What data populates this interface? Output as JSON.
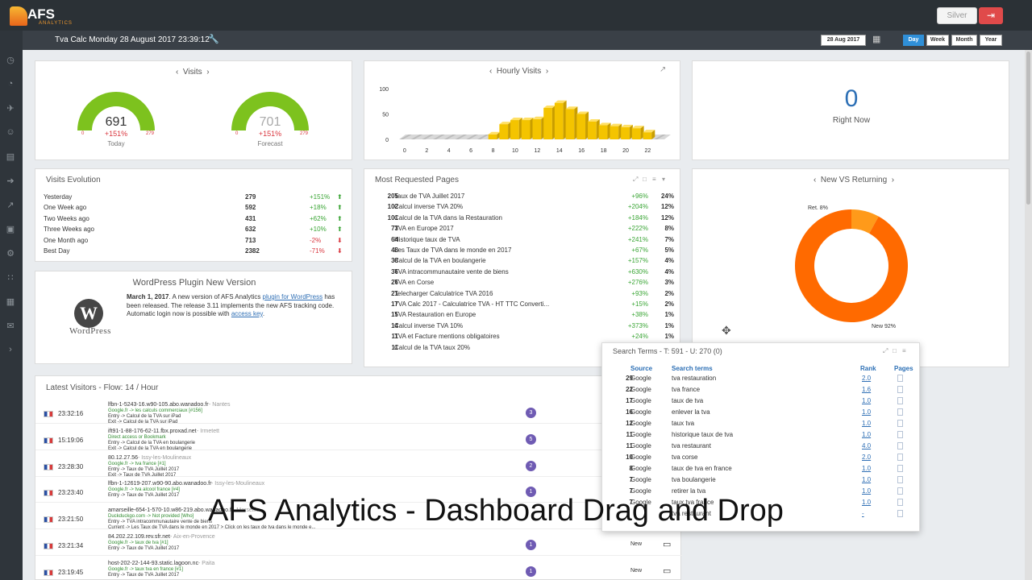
{
  "app": {
    "logo_text": "AFS",
    "logo_sub": "ANALYTICS",
    "plan_label": "Silver",
    "subtitle": "Tva Calc Monday 28 August 2017 23:39:12",
    "date_value": "28 Aug 2017",
    "periods": [
      "Day",
      "Week",
      "Month",
      "Year"
    ],
    "active_period": "Day"
  },
  "visits": {
    "title": "Visits",
    "today": {
      "value": "691",
      "delta": "+151%",
      "min": "0",
      "max": "279",
      "label": "Today",
      "level": 1.0
    },
    "forecast": {
      "value": "701",
      "delta": "+151%",
      "min": "0",
      "max": "279",
      "label": "Forecast",
      "level": 1.0
    }
  },
  "hourly": {
    "title": "Hourly Visits",
    "chart_data": {
      "type": "bar",
      "categories": [
        "0",
        "1",
        "2",
        "3",
        "4",
        "5",
        "6",
        "7",
        "8",
        "9",
        "10",
        "11",
        "12",
        "13",
        "14",
        "15",
        "16",
        "17",
        "18",
        "19",
        "20",
        "21",
        "22",
        "23"
      ],
      "values": [
        0,
        0,
        0,
        0,
        0,
        0,
        0,
        0,
        10,
        30,
        38,
        38,
        40,
        62,
        72,
        60,
        50,
        35,
        28,
        26,
        24,
        22,
        14,
        0
      ],
      "xticks": [
        "0",
        "2",
        "4",
        "6",
        "8",
        "10",
        "12",
        "14",
        "16",
        "18",
        "20",
        "22"
      ],
      "yticks": [
        "100",
        "50",
        "0"
      ],
      "ylim": [
        0,
        100
      ]
    }
  },
  "right_now": {
    "value": "0",
    "label": "Right Now"
  },
  "visits_evolution": {
    "title": "Visits Evolution",
    "rows": [
      {
        "label": "Yesterday",
        "value": "279",
        "delta": "+151%",
        "up": true
      },
      {
        "label": "One Week ago",
        "value": "592",
        "delta": "+18%",
        "up": true
      },
      {
        "label": "Two Weeks ago",
        "value": "431",
        "delta": "+62%",
        "up": true
      },
      {
        "label": "Three Weeks ago",
        "value": "632",
        "delta": "+10%",
        "up": true
      },
      {
        "label": "One Month ago",
        "value": "713",
        "delta": "-2%",
        "up": false
      },
      {
        "label": "Best Day",
        "value": "2382",
        "delta": "-71%",
        "up": false
      }
    ]
  },
  "most_requested": {
    "title": "Most Requested Pages",
    "rows": [
      {
        "n": "205",
        "page": "Taux de TVA Juillet 2017",
        "delta": "+96%",
        "pct": "24%"
      },
      {
        "n": "102",
        "page": "Calcul inverse TVA 20%",
        "delta": "+204%",
        "pct": "12%"
      },
      {
        "n": "101",
        "page": "Calcul de la TVA dans la Restauration",
        "delta": "+184%",
        "pct": "12%"
      },
      {
        "n": "73",
        "page": "TVA en Europe 2017",
        "delta": "+222%",
        "pct": "8%"
      },
      {
        "n": "64",
        "page": "Historique taux de TVA",
        "delta": "+241%",
        "pct": "7%"
      },
      {
        "n": "48",
        "page": "Les Taux de TVA dans le monde en 2017",
        "delta": "+67%",
        "pct": "5%"
      },
      {
        "n": "38",
        "page": "Calcul de la TVA en boulangerie",
        "delta": "+157%",
        "pct": "4%"
      },
      {
        "n": "36",
        "page": "TVA intracommunautaire vente de biens",
        "delta": "+630%",
        "pct": "4%"
      },
      {
        "n": "26",
        "page": "TVA en Corse",
        "delta": "+276%",
        "pct": "3%"
      },
      {
        "n": "21",
        "page": "Telecharger Calculatrice TVA 2016",
        "delta": "+93%",
        "pct": "2%"
      },
      {
        "n": "17",
        "page": "TVA Calc 2017 - Calculatrice TVA - HT TTC Converti...",
        "delta": "+15%",
        "pct": "2%"
      },
      {
        "n": "15",
        "page": "TVA Restauration en Europe",
        "delta": "+38%",
        "pct": "1%"
      },
      {
        "n": "14",
        "page": "Calcul inverse TVA 10%",
        "delta": "+373%",
        "pct": "1%"
      },
      {
        "n": "11",
        "page": "TVA et Facture mentions obligatoires",
        "delta": "+24%",
        "pct": "1%"
      },
      {
        "n": "11",
        "page": "Calcul de la TVA taux 20%",
        "delta": "",
        "pct": ""
      }
    ]
  },
  "new_vs_returning": {
    "title": "New VS Returning",
    "chart_data": {
      "type": "pie",
      "categories": [
        "Ret.",
        "New"
      ],
      "values": [
        8,
        92
      ],
      "labels": [
        "Ret. 8%",
        "New 92%"
      ]
    }
  },
  "wordpress": {
    "title": "WordPress Plugin New Version",
    "logo_text": "WordPress",
    "date": "March 1, 2017",
    "text1": ". A new version of AFS Analytics ",
    "link1": "plugin for WordPress",
    "text2": " has been released. The release 3.11 implements the new AFS tracking code. Automatic login now is possible with ",
    "link2": "access key",
    "text3": "."
  },
  "search_terms": {
    "title": "Search Terms - T: 591 - U: 270 (0)",
    "headers": {
      "source": "Source",
      "terms": "Search terms",
      "rank": "Rank",
      "pages": "Pages"
    },
    "rows": [
      {
        "n": "29",
        "source": "Google",
        "term": "tva restauration",
        "rank": "2.0"
      },
      {
        "n": "22",
        "source": "Google",
        "term": "tva france",
        "rank": "1.6"
      },
      {
        "n": "17",
        "source": "Google",
        "term": "taux de tva",
        "rank": "1.0"
      },
      {
        "n": "16",
        "source": "Google",
        "term": "enlever la tva",
        "rank": "1.0"
      },
      {
        "n": "12",
        "source": "Google",
        "term": "taux tva",
        "rank": "1.0"
      },
      {
        "n": "11",
        "source": "Google",
        "term": "historique taux de tva",
        "rank": "1.0"
      },
      {
        "n": "11",
        "source": "Google",
        "term": "tva restaurant",
        "rank": "4.0"
      },
      {
        "n": "10",
        "source": "Google",
        "term": "tva corse",
        "rank": "2.0"
      },
      {
        "n": "8",
        "source": "Google",
        "term": "taux de tva en france",
        "rank": "1.0"
      },
      {
        "n": "7",
        "source": "Google",
        "term": "tva boulangerie",
        "rank": "1.0"
      },
      {
        "n": "7",
        "source": "Google",
        "term": "retirer la tva",
        "rank": "1.0"
      },
      {
        "n": "7",
        "source": "Google",
        "term": "taux tva france",
        "rank": "1.0"
      },
      {
        "n": "",
        "source": "",
        "term": "tva restaurant",
        "rank": "-"
      }
    ]
  },
  "latest_visitors": {
    "title": "Latest Visitors - Flow: 14 / Hour",
    "rows": [
      {
        "time": "23:32:16",
        "host": "lfbn-1-5243-16.w90-105.abo.wanadoo.fr",
        "loc": " - Nantes",
        "l1": "Google.fr -> les calculs commerciaux [#156]",
        "l2": "Entry -> Calcul de la TVA sur iPad",
        "l3": "Exit -> Calcul de la TVA sur iPad",
        "badge": "3",
        "tag": ""
      },
      {
        "time": "15:19:06",
        "host": "ift91-1-88-176-62-11.fbx.proxad.net",
        "loc": " - Irmetett",
        "l1": "Direct access or Bookmark",
        "l2": "Entry -> Calcul de la TVA en boulangerie",
        "l3": "Exit -> Calcul de la TVA en boulangerie",
        "badge": "5",
        "tag": ""
      },
      {
        "time": "23:28:30",
        "host": "80.12.27.56",
        "loc": " - Issy-les-Moulineaux",
        "l1": "Google.fr -> tva france [#1]",
        "l2": "Entry -> Taux de TVA Juillet 2017",
        "l3": "Exit -> Taux de TVA Juillet 2017",
        "badge": "2",
        "tag": ""
      },
      {
        "time": "23:23:40",
        "host": "lfbn-1-12619-207.w90-90.abo.wanadoo.fr",
        "loc": " - Issy-les-Moulineaux",
        "l1": "Google.fr -> tva alcool france [#4]",
        "l2": "Entry -> Taux de TVA Juillet 2017",
        "l3": "",
        "badge": "1",
        "tag": ""
      },
      {
        "time": "23:21:50",
        "host": "amarseille-654-1-570-10.w86-219.abo.wanadoo.fr",
        "loc": " - Marseille",
        "l1": "Duckduckgo.com -> Not provided [Who]",
        "l2": "Entry -> TVA intracommunautaire vente de biens",
        "l3": "Current -> Les Taux de TVA dans le monde en 2017 > Click on les taux de tva dans le monde e...",
        "badge": "",
        "tag": ""
      },
      {
        "time": "23:21:34",
        "host": "84.202.22.109.rev.sfr.net",
        "loc": " - Aix-en-Provence",
        "l1": "Google.fr -> taux de tva [#1]",
        "l2": "Entry -> Taux de TVA Juillet 2017",
        "l3": "",
        "badge": "1",
        "tag": "New"
      },
      {
        "time": "23:19:45",
        "host": "host-202-22-144-93.static.lagoon.nc",
        "loc": " - Paita",
        "l1": "Google.fr -> taux tva en france [#1]",
        "l2": "Entry -> Taux de TVA Juillet 2017",
        "l3": "",
        "badge": "1",
        "tag": "New"
      }
    ]
  },
  "caption": "AFS Analytics - Dashboard Drag and Drop",
  "colors": {
    "gauge": "#7dc21e",
    "bars": "#f4c400",
    "donut_new": "#ff6a00",
    "donut_ret": "#ff9a1a",
    "topbar": "#2b3136"
  }
}
